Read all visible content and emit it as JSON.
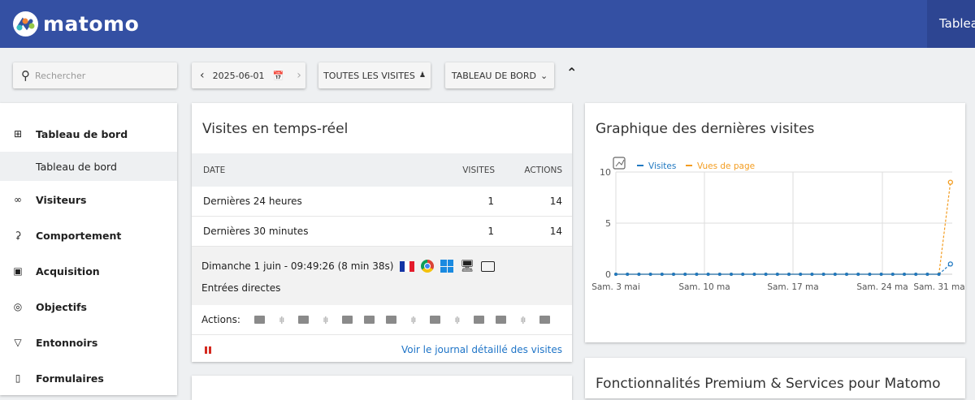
{
  "header": {
    "brand": "matomo",
    "right_tab": "Tableau"
  },
  "toolbar": {
    "search_placeholder": "Rechercher",
    "date": "2025-06-01",
    "segment": "TOUTES LES VISITES",
    "dashboard": "TABLEAU DE BORD"
  },
  "sidebar": {
    "items": [
      {
        "label": "Tableau de bord",
        "icon": "grid-icon"
      },
      {
        "label": "Tableau de bord",
        "sub": true
      },
      {
        "label": "Visiteurs",
        "icon": "glasses-icon"
      },
      {
        "label": "Comportement",
        "icon": "bell-icon"
      },
      {
        "label": "Acquisition",
        "icon": "window-icon"
      },
      {
        "label": "Objectifs",
        "icon": "target-icon"
      },
      {
        "label": "Entonnoirs",
        "icon": "funnel-icon"
      },
      {
        "label": "Formulaires",
        "icon": "clipboard-icon"
      }
    ]
  },
  "realtime": {
    "title": "Visites en temps-réel",
    "columns": [
      "DATE",
      "VISITES",
      "ACTIONS"
    ],
    "rows": [
      {
        "label": "Dernières 24 heures",
        "visits": "1",
        "actions": "14"
      },
      {
        "label": "Dernières 30 minutes",
        "visits": "1",
        "actions": "14"
      }
    ],
    "visit": {
      "datetime": "Dimanche 1 juin - 09:49:26 (8 min 38s)",
      "referrer": "Entrées directes",
      "actions_label": "Actions:",
      "actions": [
        "folder",
        "audio",
        "folder",
        "audio",
        "folder",
        "folder",
        "folder",
        "audio",
        "folder",
        "audio",
        "folder",
        "folder",
        "audio",
        "folder"
      ]
    },
    "link": "Voir le journal détaillé des visites"
  },
  "graph_title": "Graphique des dernières visites",
  "premium_title": "Fonctionnalités Premium & Services pour Matomo",
  "chart_data": {
    "type": "line",
    "ylim": [
      0,
      10
    ],
    "yticks": [
      "0",
      "5",
      "10"
    ],
    "xticks": [
      "Sam. 3 mai",
      "Sam. 10 ma",
      "Sam. 17 ma",
      "Sam. 24 ma",
      "Sam. 31 ma"
    ],
    "x": [
      "3 mai",
      "4 mai",
      "5 mai",
      "6 mai",
      "7 mai",
      "8 mai",
      "9 mai",
      "10 mai",
      "11 mai",
      "12 mai",
      "13 mai",
      "14 mai",
      "15 mai",
      "16 mai",
      "17 mai",
      "18 mai",
      "19 mai",
      "20 mai",
      "21 mai",
      "22 mai",
      "23 mai",
      "24 mai",
      "25 mai",
      "26 mai",
      "27 mai",
      "28 mai",
      "29 mai",
      "30 mai",
      "31 mai",
      "1 juin"
    ],
    "series": [
      {
        "name": "Visites",
        "color": "#1f78c1",
        "values": [
          0,
          0,
          0,
          0,
          0,
          0,
          0,
          0,
          0,
          0,
          0,
          0,
          0,
          0,
          0,
          0,
          0,
          0,
          0,
          0,
          0,
          0,
          0,
          0,
          0,
          0,
          0,
          0,
          0,
          1
        ]
      },
      {
        "name": "Vues de page",
        "color": "#f39c1f",
        "values": [
          0,
          0,
          0,
          0,
          0,
          0,
          0,
          0,
          0,
          0,
          0,
          0,
          0,
          0,
          0,
          0,
          0,
          0,
          0,
          0,
          0,
          0,
          0,
          0,
          0,
          0,
          0,
          0,
          0,
          9
        ]
      }
    ],
    "grid": true,
    "legend": "top-left"
  }
}
